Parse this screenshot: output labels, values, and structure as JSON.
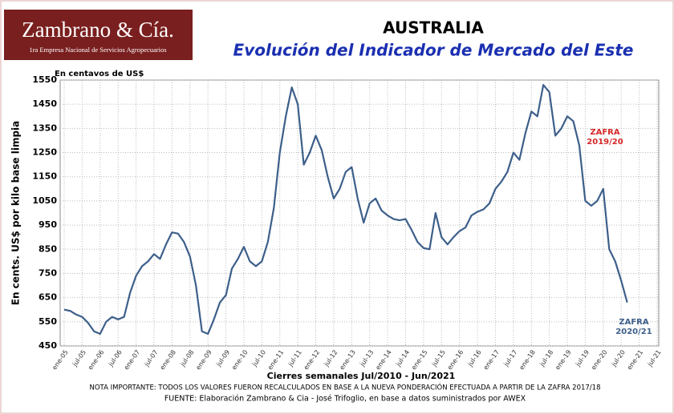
{
  "logo": {
    "name": "Zambrano & Cía.",
    "tagline": "1ra Empresa Nacional de Servicios Agropecuarios"
  },
  "chart_data": {
    "type": "line",
    "title": "AUSTRALIA",
    "subtitle": "Evolución del Indicador de Mercado del Este",
    "unit_note": "En centavos de US$",
    "y_label": "En cents. US$ por kilo base limpia",
    "x_label": "Cierres semanales Jul/2010 - Jun/2021",
    "notes": [
      "NOTA IMPORTANTE: TODOS LOS VALORES FUERON RECALCULADOS EN BASE A LA NUEVA PONDERACIÓN EFECTUADA A PARTIR DE LA ZAFRA  2017/18",
      "FUENTE: Elaboración Zambrano & Cia - José Trifoglio, en base a datos suministrados por AWEX"
    ],
    "annotations": [
      {
        "text": [
          "ZAFRA",
          "2019/20"
        ],
        "color": "#d62828"
      },
      {
        "text": [
          "ZAFRA",
          "2020/21"
        ],
        "color": "#3d5f8a"
      }
    ],
    "categories": [
      "ene-05",
      null,
      null,
      "jul-05",
      null,
      null,
      "ene-06",
      null,
      null,
      "jul-06",
      null,
      null,
      "ene-07",
      null,
      null,
      "jul-07",
      null,
      null,
      "ene-08",
      null,
      null,
      "jul-08",
      null,
      null,
      "ene-09",
      null,
      null,
      "jul-09",
      null,
      null,
      "ene-10",
      null,
      null,
      "jul-10",
      null,
      null,
      "ene-11",
      null,
      null,
      "jul-11",
      null,
      null,
      "ene-12",
      null,
      null,
      "jul-12",
      null,
      null,
      "ene-13",
      null,
      null,
      "jul-13",
      null,
      null,
      "ene-14",
      null,
      null,
      "jul-14",
      null,
      null,
      "ene-15",
      null,
      null,
      "jul-15",
      null,
      null,
      "ene-16",
      null,
      null,
      "jul-16",
      null,
      null,
      "ene-17",
      null,
      null,
      "jul-17",
      null,
      null,
      "ene-18",
      null,
      null,
      "jul-18",
      null,
      null,
      "ene-19",
      null,
      null,
      "jul-19",
      null,
      null,
      "ene-20",
      null,
      null,
      "jul-20",
      null,
      null,
      "ene-21",
      null,
      null,
      "jul-21"
    ],
    "series": [
      {
        "name": "Indicador de Mercado del Este",
        "color": "#3d5f8a",
        "values": [
          600,
          595,
          580,
          570,
          545,
          510,
          500,
          550,
          570,
          560,
          570,
          670,
          740,
          780,
          800,
          830,
          810,
          870,
          920,
          915,
          880,
          820,
          700,
          510,
          500,
          560,
          630,
          660,
          770,
          810,
          860,
          800,
          780,
          800,
          880,
          1020,
          1250,
          1400,
          1520,
          1450,
          1200,
          1250,
          1320,
          1260,
          1150,
          1060,
          1100,
          1170,
          1190,
          1060,
          960,
          1040,
          1060,
          1010,
          990,
          975,
          970,
          975,
          930,
          880,
          855,
          850,
          1000,
          900,
          870,
          900,
          925,
          940,
          990,
          1005,
          1015,
          1040,
          1100,
          1130,
          1170,
          1250,
          1220,
          1330,
          1420,
          1400,
          1530,
          1500,
          1320,
          1350,
          1400,
          1380,
          1280,
          1050,
          1030,
          1050,
          1100,
          850,
          800,
          720,
          630,
          null,
          null,
          null,
          null,
          null
        ]
      }
    ],
    "ylim": [
      450,
      1550
    ],
    "yticks": [
      450,
      550,
      650,
      750,
      850,
      950,
      1050,
      1150,
      1250,
      1350,
      1450,
      1550
    ],
    "grid": true
  }
}
